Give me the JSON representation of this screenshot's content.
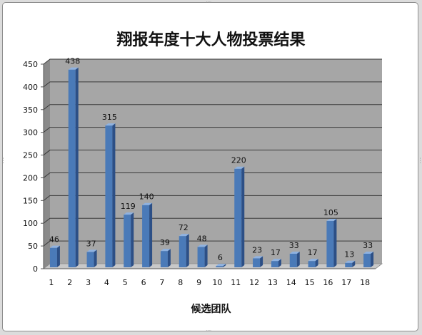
{
  "chart_data": {
    "type": "bar",
    "title": "翔报年度十大人物投票结果",
    "xlabel": "候选团队",
    "ylabel": "",
    "categories": [
      "1",
      "2",
      "3",
      "4",
      "5",
      "6",
      "7",
      "8",
      "9",
      "10",
      "11",
      "12",
      "13",
      "14",
      "15",
      "16",
      "17",
      "18"
    ],
    "values": [
      46,
      438,
      37,
      315,
      119,
      140,
      39,
      72,
      48,
      6,
      220,
      23,
      17,
      33,
      17,
      105,
      13,
      33
    ],
    "ylim": [
      0,
      450
    ],
    "yticks": [
      0,
      50,
      100,
      150,
      200,
      250,
      300,
      350,
      400,
      450
    ],
    "data_labels": true,
    "grid": true,
    "legend": "none",
    "style": "3d-column",
    "colors": {
      "bar_front": "#4a7ab8",
      "bar_side": "#2c4f86",
      "bar_top": "#8fb2e0",
      "plot_back": "#a6a6a6",
      "plot_side": "#8a8a8a",
      "floor": "#c8c8c8",
      "grid": "#3a3a3a"
    }
  }
}
